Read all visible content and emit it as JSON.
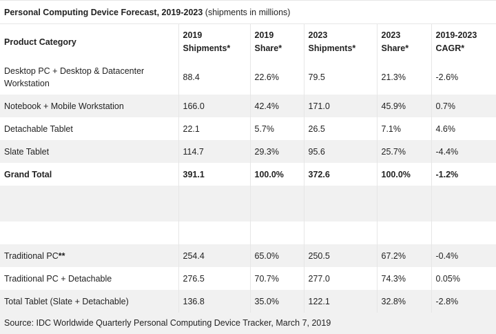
{
  "caption": {
    "title": "Personal Computing Device Forecast, 2019-2023",
    "subtitle": " (shipments in millions)"
  },
  "headers": {
    "category": "Product Category",
    "ship2019_line1": "2019",
    "ship2019_line2": "Shipments*",
    "share2019_line1": "2019",
    "share2019_line2": "Share*",
    "ship2023_line1": "2023",
    "ship2023_line2": "Shipments*",
    "share2023_line1": "2023",
    "share2023_line2": "Share*",
    "cagr_line1": "2019-2023",
    "cagr_line2": "CAGR*"
  },
  "rows": [
    {
      "category": "Desktop PC + Desktop & Datacenter Workstation",
      "ship2019": "88.4",
      "share2019": "22.6%",
      "ship2023": "79.5",
      "share2023": "21.3%",
      "cagr": "-2.6%"
    },
    {
      "category": "Notebook + Mobile Workstation",
      "ship2019": "166.0",
      "share2019": "42.4%",
      "ship2023": "171.0",
      "share2023": "45.9%",
      "cagr": "0.7%"
    },
    {
      "category": "Detachable Tablet",
      "ship2019": "22.1",
      "share2019": "5.7%",
      "ship2023": "26.5",
      "share2023": "7.1%",
      "cagr": "4.6%"
    },
    {
      "category": "Slate Tablet",
      "ship2019": "114.7",
      "share2019": "29.3%",
      "ship2023": "95.6",
      "share2023": "25.7%",
      "cagr": "-4.4%"
    },
    {
      "category": "Grand Total",
      "ship2019": "391.1",
      "share2019": "100.0%",
      "ship2023": "372.6",
      "share2023": "100.0%",
      "cagr": "-1.2%"
    }
  ],
  "rows2": [
    {
      "category": "Traditional PC",
      "category_suffix": "**",
      "ship2019": "254.4",
      "share2019": "65.0%",
      "ship2023": "250.5",
      "share2023": "67.2%",
      "cagr": "-0.4%"
    },
    {
      "category": "Traditional PC + Detachable",
      "ship2019": "276.5",
      "share2019": "70.7%",
      "ship2023": "277.0",
      "share2023": "74.3%",
      "cagr": "0.05%"
    },
    {
      "category": "Total Tablet (Slate + Detachable)",
      "ship2019": "136.8",
      "share2019": "35.0%",
      "ship2023": "122.1",
      "share2023": "32.8%",
      "cagr": "-2.8%"
    }
  ],
  "source": "Source: IDC Worldwide Quarterly Personal Computing Device Tracker, March 7, 2019"
}
